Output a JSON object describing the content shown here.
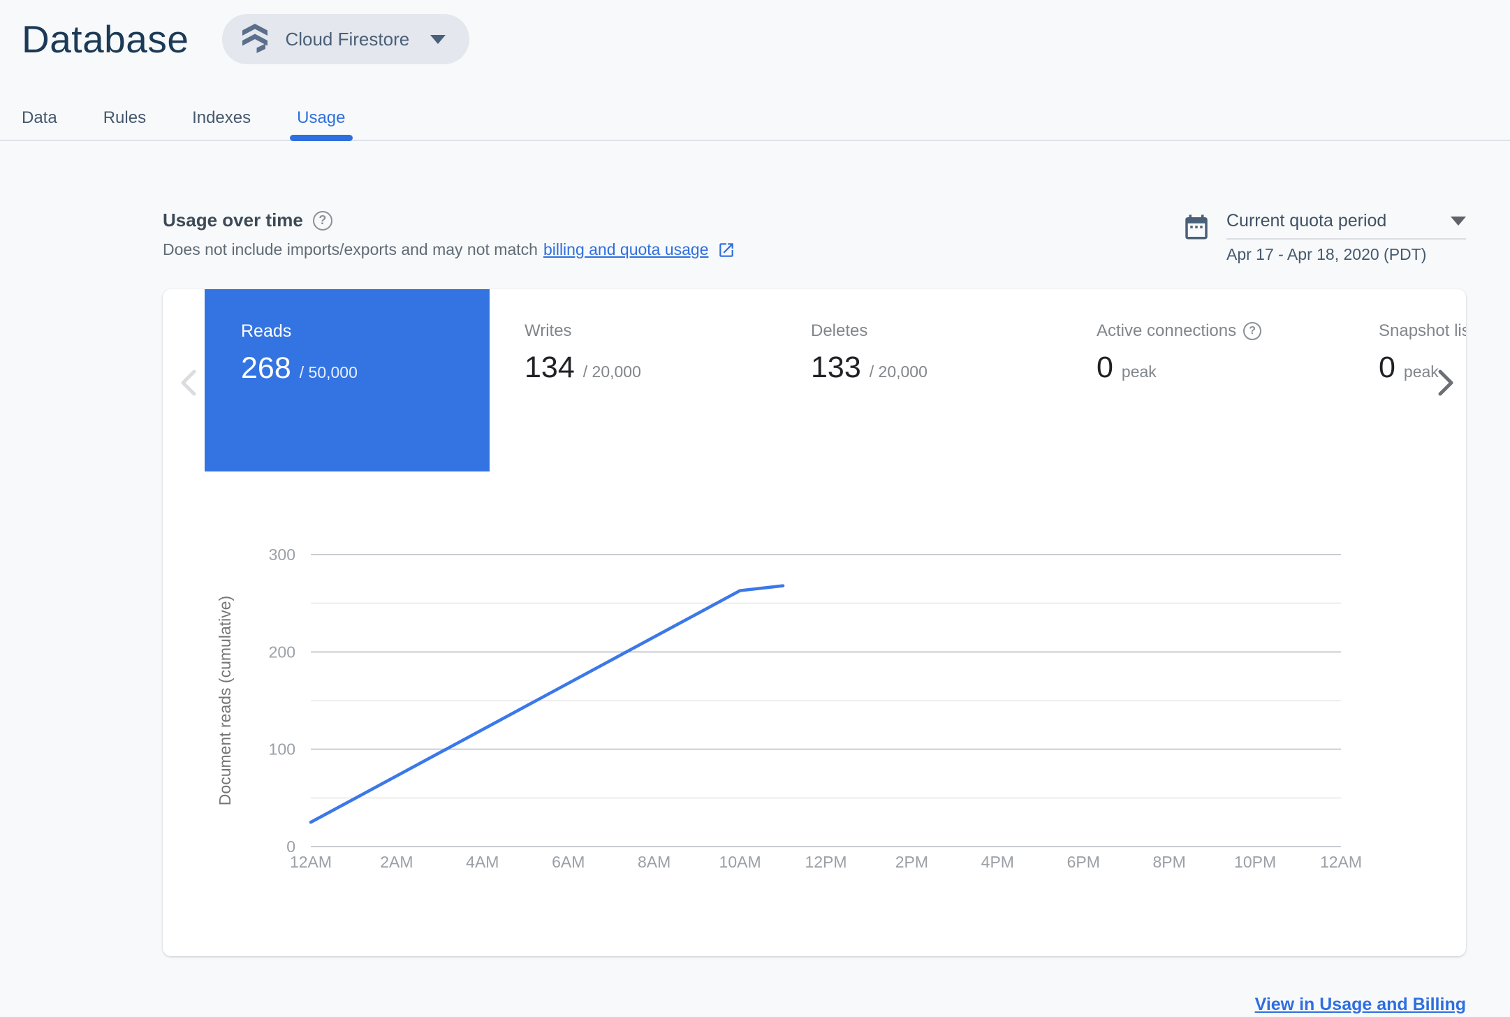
{
  "header": {
    "title": "Database",
    "product_selector_label": "Cloud Firestore"
  },
  "tabs": {
    "items": [
      {
        "label": "Data",
        "active": false
      },
      {
        "label": "Rules",
        "active": false
      },
      {
        "label": "Indexes",
        "active": false
      },
      {
        "label": "Usage",
        "active": true
      }
    ]
  },
  "usage_section": {
    "title": "Usage over time",
    "subtitle_prefix": "Does not include imports/exports and may not match",
    "subtitle_link_label": "billing and quota usage",
    "period_label": "Current quota period",
    "period_value": "Apr 17 - Apr 18, 2020 (PDT)"
  },
  "metric_cards": [
    {
      "label": "Reads",
      "value": "268",
      "suffix": "/ 50,000",
      "selected": true
    },
    {
      "label": "Writes",
      "value": "134",
      "suffix": "/ 20,000",
      "selected": false
    },
    {
      "label": "Deletes",
      "value": "133",
      "suffix": "/ 20,000",
      "selected": false
    },
    {
      "label": "Active connections",
      "value": "0",
      "suffix": "peak",
      "selected": false,
      "has_help": true
    },
    {
      "label": "Snapshot listeners",
      "value": "0",
      "suffix": "peak",
      "selected": false
    }
  ],
  "chart_data": {
    "type": "line",
    "title": "",
    "xlabel": "",
    "ylabel": "Document reads (cumulative)",
    "x_tick_labels": [
      "12AM",
      "2AM",
      "4AM",
      "6AM",
      "8AM",
      "10AM",
      "12PM",
      "2PM",
      "4PM",
      "6PM",
      "8PM",
      "10PM",
      "12AM"
    ],
    "x_range_hours": [
      0,
      24
    ],
    "y_ticks": [
      0,
      100,
      200,
      300
    ],
    "y_minor_gridlines": [
      50,
      150,
      250
    ],
    "ylim": [
      0,
      300
    ],
    "grid": true,
    "legend": false,
    "series": [
      {
        "name": "Document reads (cumulative)",
        "color": "#3b78e8",
        "points": [
          {
            "hour": 0,
            "value": 25
          },
          {
            "hour": 10,
            "value": 263
          },
          {
            "hour": 11,
            "value": 268
          }
        ]
      }
    ]
  },
  "footer": {
    "link_label": "View in Usage and Billing"
  },
  "colors": {
    "accent_blue": "#2e6fe0",
    "selected_card_blue": "#3474e2",
    "chart_line_blue": "#3b78e8",
    "title_navy": "#1b3a57",
    "page_background": "#f8f9fa",
    "major_gridline": "#c9cdd2",
    "minor_gridline": "#ededee"
  }
}
